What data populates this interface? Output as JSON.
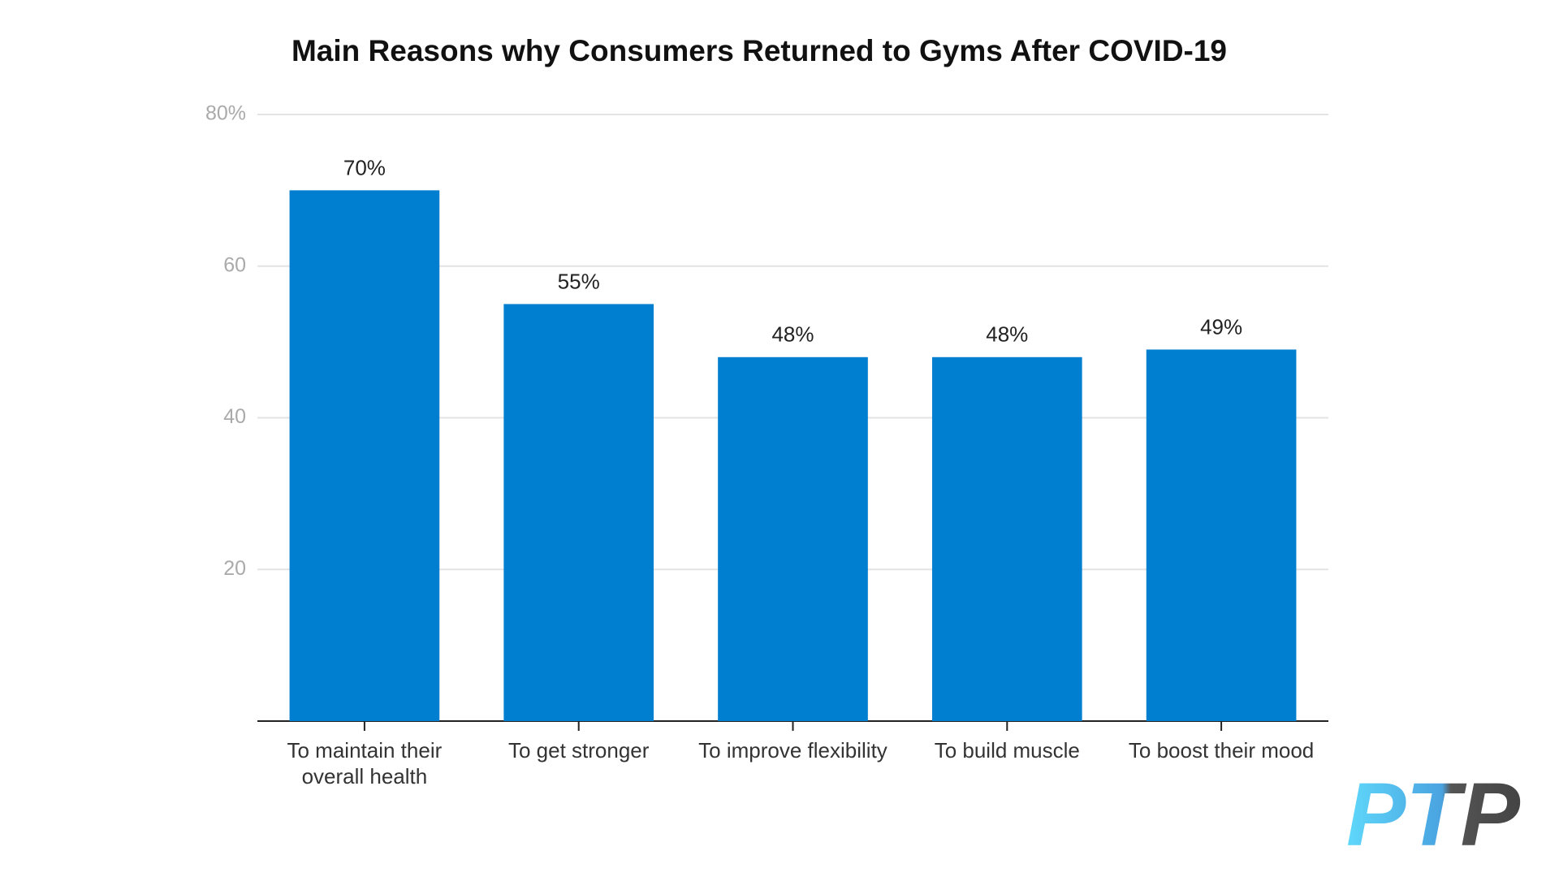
{
  "chart_data": {
    "type": "bar",
    "title": "Main Reasons why Consumers Returned to Gyms After COVID-19",
    "categories": [
      "To maintain their overall health",
      "To get stronger",
      "To improve flexibility",
      "To build muscle",
      "To boost their mood"
    ],
    "values": [
      70,
      55,
      48,
      48,
      49
    ],
    "value_labels": [
      "70%",
      "55%",
      "48%",
      "48%",
      "49%"
    ],
    "color": "#007ecf",
    "ylim": [
      0,
      80
    ],
    "yticks": [
      20,
      40,
      60,
      {
        "value": 80,
        "label": "80%"
      }
    ],
    "grid": true
  },
  "logo": "PTP"
}
